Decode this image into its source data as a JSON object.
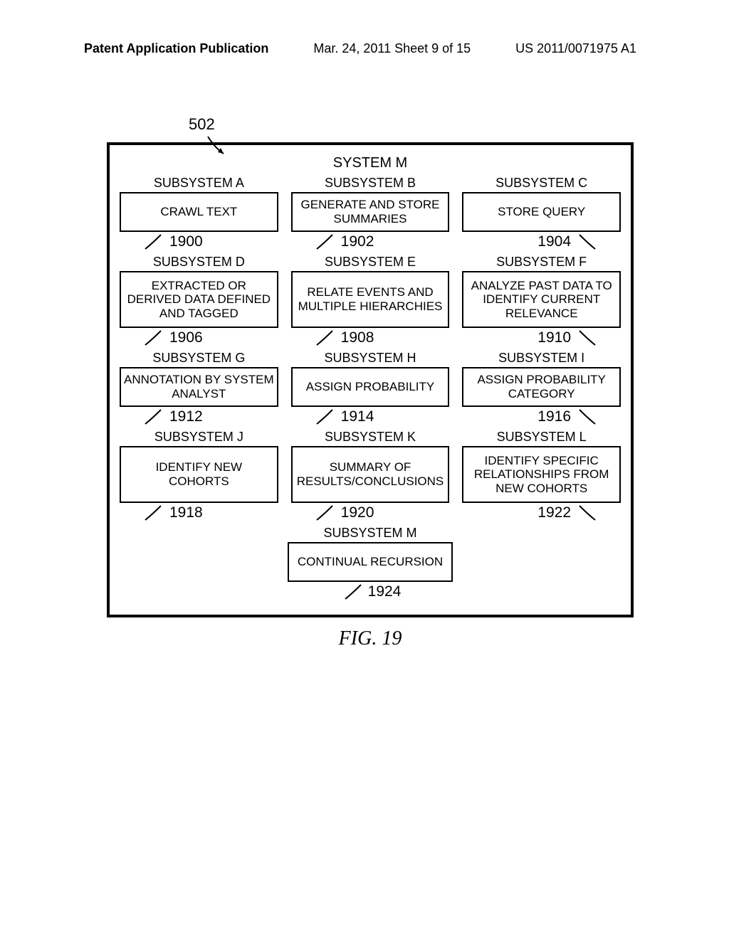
{
  "header": {
    "left": "Patent Application Publication",
    "center": "Mar. 24, 2011  Sheet 9 of 15",
    "right": "US 2011/0071975 A1"
  },
  "figure": {
    "callout": "502",
    "system_title": "SYSTEM M",
    "caption": "FIG. 19",
    "rows": [
      [
        {
          "label": "SUBSYSTEM A",
          "box": "CRAWL TEXT",
          "ref": "1900",
          "lead": "left"
        },
        {
          "label": "SUBSYSTEM B",
          "box": "GENERATE AND STORE SUMMARIES",
          "ref": "1902",
          "lead": "left"
        },
        {
          "label": "SUBSYSTEM C",
          "box": "STORE QUERY",
          "ref": "1904",
          "lead": "right"
        }
      ],
      [
        {
          "label": "SUBSYSTEM D",
          "box": "EXTRACTED OR DERIVED DATA DEFINED AND TAGGED",
          "ref": "1906",
          "lead": "left"
        },
        {
          "label": "SUBSYSTEM E",
          "box": "RELATE EVENTS AND MULTIPLE HIERARCHIES",
          "ref": "1908",
          "lead": "left"
        },
        {
          "label": "SUBSYSTEM F",
          "box": "ANALYZE PAST DATA TO IDENTIFY CURRENT RELEVANCE",
          "ref": "1910",
          "lead": "right"
        }
      ],
      [
        {
          "label": "SUBSYSTEM G",
          "box": "ANNOTATION BY SYSTEM ANALYST",
          "ref": "1912",
          "lead": "left"
        },
        {
          "label": "SUBSYSTEM H",
          "box": "ASSIGN PROBABILITY",
          "ref": "1914",
          "lead": "left"
        },
        {
          "label": "SUBSYSTEM I",
          "box": "ASSIGN PROBABILITY CATEGORY",
          "ref": "1916",
          "lead": "right"
        }
      ],
      [
        {
          "label": "SUBSYSTEM J",
          "box": "IDENTIFY NEW COHORTS",
          "ref": "1918",
          "lead": "left"
        },
        {
          "label": "SUBSYSTEM K",
          "box": "SUMMARY OF RESULTS/CONCLUSIONS",
          "ref": "1920",
          "lead": "left"
        },
        {
          "label": "SUBSYSTEM L",
          "box": "IDENTIFY SPECIFIC RELATIONSHIPS FROM NEW COHORTS",
          "ref": "1922",
          "lead": "right"
        }
      ]
    ],
    "bottom": {
      "label": "SUBSYSTEM M",
      "box": "CONTINUAL RECURSION",
      "ref": "1924",
      "lead": "left"
    },
    "box_heights": {
      "row0": "short",
      "row1": "tall",
      "row2": "short",
      "row3": "tall"
    }
  },
  "colors": {
    "bg": "#ffffff",
    "line": "#000000",
    "text": "#000000"
  }
}
